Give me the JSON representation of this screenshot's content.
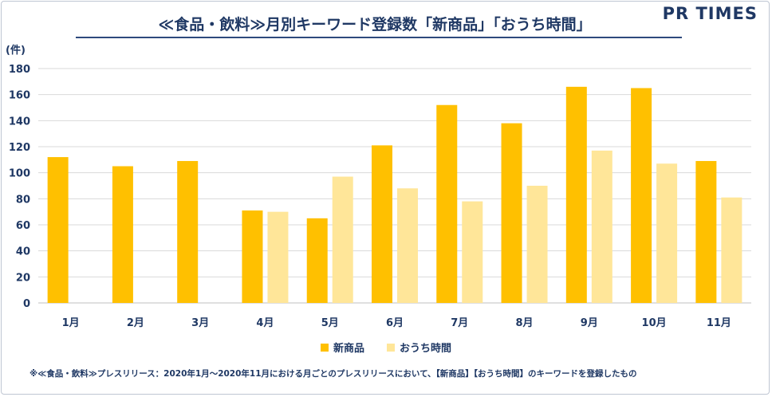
{
  "title": "≪食品・飲料≫月別キーワード登録数「新商品」「おうち時間」",
  "logo": "PR TIMES",
  "unit_label": "(件)",
  "footnote": "※≪食品・飲料≫プレスリリース：2020年1月～2020年11月における月ごとのプレスリリースにおいて、【新商品】【おうち時間】のキーワードを登録したもの",
  "chart_data": {
    "type": "bar",
    "categories": [
      "1月",
      "2月",
      "3月",
      "4月",
      "5月",
      "6月",
      "7月",
      "8月",
      "9月",
      "10月",
      "11月"
    ],
    "series": [
      {
        "name": "新商品",
        "color": "#ffc000",
        "values": [
          112,
          105,
          109,
          71,
          65,
          121,
          152,
          138,
          166,
          165,
          109
        ]
      },
      {
        "name": "おうち時間",
        "color": "#ffe699",
        "values": [
          null,
          null,
          null,
          70,
          97,
          88,
          78,
          90,
          117,
          107,
          81
        ]
      }
    ],
    "ylim": [
      0,
      180
    ],
    "yticks": [
      0,
      20,
      40,
      60,
      80,
      100,
      120,
      140,
      160,
      180
    ],
    "ylabel": "(件)",
    "grid": true,
    "legend_position": "bottom"
  }
}
